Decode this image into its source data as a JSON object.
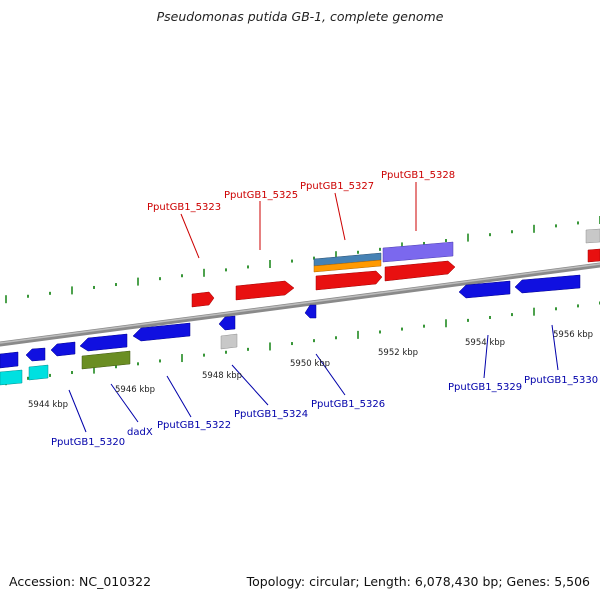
{
  "header": {
    "title": "Pseudomonas putida GB-1, complete genome"
  },
  "footer": {
    "accession": "Accession: NC_010322",
    "stats": "Topology: circular; Length: 6,078,430 bp; Genes: 5,506"
  },
  "colors": {
    "backbone": "#8a8a8a",
    "forward_label": "#cc0000",
    "reverse_label": "#0000aa",
    "tick": "#228b22",
    "red": "#e81010",
    "blue": "#1010e0",
    "cyan": "#00e0e0",
    "olive": "#6b8e23",
    "gray": "#c8c8c8",
    "steelblue": "#4682b4",
    "orange": "#ff9900",
    "slateblue": "#7b68ee"
  },
  "kbp_labels": [
    "5944 kbp",
    "5946 kbp",
    "5948 kbp",
    "5950 kbp",
    "5952 kbp",
    "5954 kbp",
    "5956 kbp"
  ],
  "forward_gene_labels": [
    "PputGB1_5323",
    "PputGB1_5325",
    "PputGB1_5327",
    "PputGB1_5328"
  ],
  "reverse_gene_labels": [
    "PputGB1_5320",
    "dadX",
    "PputGB1_5322",
    "PputGB1_5324",
    "PputGB1_5326",
    "PputGB1_5329",
    "PputGB1_5330"
  ]
}
